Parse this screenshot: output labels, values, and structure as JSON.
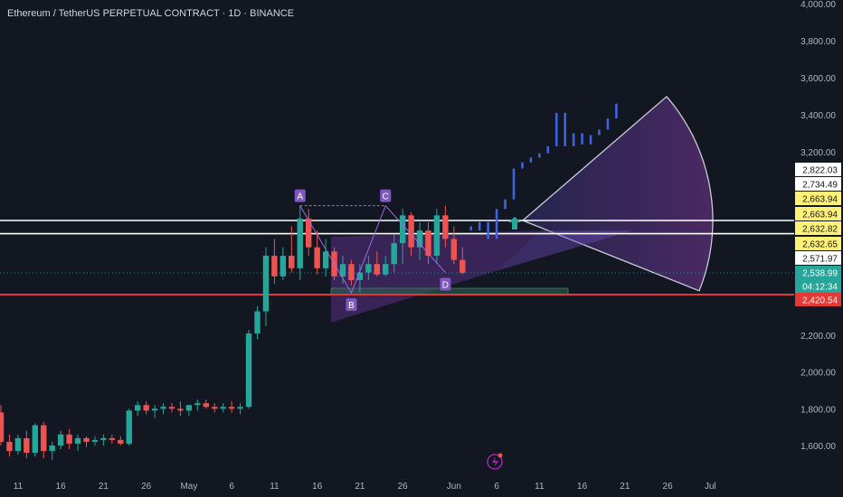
{
  "header": {
    "title": "Ethereum / TetherUS PERPETUAL CONTRACT · 1D · BINANCE"
  },
  "colors": {
    "background": "#131722",
    "up": "#26a69a",
    "down": "#ef5350",
    "projection": "#3f63e0",
    "axis_text": "#b2b5be",
    "white_line": "#ffffff",
    "red_line": "#e53935",
    "pattern_fill": "#7e3bb7",
    "label_purple": "#7e57c2",
    "arrow_green": "#26a69a"
  },
  "chart_data": {
    "type": "candlestick",
    "title": "Ethereum / TetherUS PERPETUAL CONTRACT · 1D · BINANCE",
    "ylim": [
      1450,
      4000
    ],
    "y_ticks": [
      "4,000.00",
      "3,800.00",
      "3,600.00",
      "3,400.00",
      "3,200.00",
      "2,200.00",
      "2,000.00",
      "1,800.00",
      "1,600.00"
    ],
    "x_ticks": [
      {
        "label": "11",
        "index": 2
      },
      {
        "label": "16",
        "index": 7
      },
      {
        "label": "21",
        "index": 12
      },
      {
        "label": "26",
        "index": 17
      },
      {
        "label": "May",
        "index": 22
      },
      {
        "label": "6",
        "index": 27
      },
      {
        "label": "11",
        "index": 32
      },
      {
        "label": "16",
        "index": 37
      },
      {
        "label": "21",
        "index": 42
      },
      {
        "label": "26",
        "index": 47
      },
      {
        "label": "Jun",
        "index": 53
      },
      {
        "label": "6",
        "index": 58
      },
      {
        "label": "11",
        "index": 63
      },
      {
        "label": "16",
        "index": 68
      },
      {
        "label": "21",
        "index": 73
      },
      {
        "label": "26",
        "index": 78
      },
      {
        "label": "Jul",
        "index": 83
      }
    ],
    "candles": [
      [
        1780,
        1820,
        1600,
        1620
      ],
      [
        1620,
        1660,
        1540,
        1570
      ],
      [
        1570,
        1660,
        1550,
        1640
      ],
      [
        1640,
        1680,
        1530,
        1560
      ],
      [
        1560,
        1720,
        1540,
        1710
      ],
      [
        1710,
        1730,
        1530,
        1570
      ],
      [
        1570,
        1620,
        1520,
        1600
      ],
      [
        1600,
        1680,
        1580,
        1660
      ],
      [
        1660,
        1690,
        1580,
        1610
      ],
      [
        1610,
        1660,
        1570,
        1640
      ],
      [
        1640,
        1650,
        1590,
        1620
      ],
      [
        1620,
        1650,
        1600,
        1630
      ],
      [
        1630,
        1660,
        1600,
        1640
      ],
      [
        1640,
        1660,
        1610,
        1630
      ],
      [
        1630,
        1650,
        1600,
        1610
      ],
      [
        1610,
        1800,
        1600,
        1790
      ],
      [
        1790,
        1840,
        1760,
        1820
      ],
      [
        1820,
        1840,
        1770,
        1790
      ],
      [
        1790,
        1820,
        1750,
        1800
      ],
      [
        1800,
        1830,
        1770,
        1810
      ],
      [
        1810,
        1830,
        1780,
        1800
      ],
      [
        1800,
        1840,
        1760,
        1790
      ],
      [
        1790,
        1820,
        1760,
        1820
      ],
      [
        1820,
        1850,
        1790,
        1830
      ],
      [
        1830,
        1850,
        1800,
        1810
      ],
      [
        1810,
        1830,
        1780,
        1800
      ],
      [
        1800,
        1830,
        1780,
        1810
      ],
      [
        1810,
        1840,
        1780,
        1800
      ],
      [
        1800,
        1830,
        1770,
        1810
      ],
      [
        1810,
        2230,
        1800,
        2210
      ],
      [
        2210,
        2360,
        2180,
        2330
      ],
      [
        2330,
        2600,
        2250,
        2580
      ],
      [
        2580,
        2620,
        2480,
        2520
      ],
      [
        2520,
        2600,
        2500,
        2580
      ],
      [
        2580,
        2650,
        2540,
        2550
      ],
      [
        2550,
        2710,
        2500,
        2670
      ],
      [
        2670,
        2700,
        2580,
        2600
      ],
      [
        2600,
        2640,
        2530,
        2550
      ],
      [
        2550,
        2620,
        2520,
        2590
      ],
      [
        2590,
        2600,
        2500,
        2520
      ],
      [
        2520,
        2580,
        2480,
        2560
      ],
      [
        2560,
        2570,
        2470,
        2500
      ],
      [
        2500,
        2560,
        2430,
        2540
      ],
      [
        2540,
        2580,
        2500,
        2560
      ],
      [
        2560,
        2590,
        2520,
        2530
      ],
      [
        2530,
        2580,
        2520,
        2560
      ],
      [
        2560,
        2630,
        2540,
        2610
      ],
      [
        2610,
        2700,
        2560,
        2680
      ],
      [
        2680,
        2690,
        2580,
        2600
      ],
      [
        2600,
        2660,
        2570,
        2640
      ],
      [
        2640,
        2660,
        2560,
        2580
      ],
      [
        2580,
        2700,
        2560,
        2680
      ],
      [
        2680,
        2710,
        2600,
        2620
      ],
      [
        2620,
        2650,
        2560,
        2570
      ],
      [
        2570,
        2600,
        2530,
        2539
      ]
    ],
    "projection": [
      [
        2650,
        2640
      ],
      [
        2640,
        2660
      ],
      [
        2660,
        2620
      ],
      [
        2620,
        2700
      ],
      [
        2700,
        2730
      ],
      [
        2730,
        2850
      ],
      [
        2850,
        2980
      ],
      [
        2980,
        3080
      ],
      [
        3080,
        3170
      ],
      [
        3170,
        3230
      ],
      [
        3230,
        3410
      ],
      [
        3410,
        3230
      ],
      [
        3230,
        3300
      ],
      [
        3300,
        3240
      ],
      [
        3240,
        3290
      ],
      [
        3290,
        3320
      ],
      [
        3320,
        3380
      ],
      [
        3380,
        3460
      ]
    ],
    "horizontal_lines": [
      {
        "price": 2663.94,
        "color": "white"
      },
      {
        "price": 2632.65,
        "color": "white"
      },
      {
        "price": 2420.54,
        "color": "red"
      }
    ],
    "price_labels": [
      {
        "text": "2,822.03",
        "style": "white"
      },
      {
        "text": "2,734.49",
        "style": "white"
      },
      {
        "text": "2,663.94",
        "style": "yellow"
      },
      {
        "text": "2,663.94",
        "style": "yellow"
      },
      {
        "text": "2,632.82",
        "style": "yellow"
      },
      {
        "text": "2,632.65",
        "style": "yellow"
      },
      {
        "text": "2,571.97",
        "style": "white"
      },
      {
        "text": "2,538.99",
        "style": "green"
      },
      {
        "text": "04:12:34",
        "style": "green"
      },
      {
        "text": "2,420.54",
        "style": "red"
      }
    ],
    "points": [
      {
        "label": "A",
        "index": 35,
        "price": 2710
      },
      {
        "label": "B",
        "index": 41,
        "price": 2430
      },
      {
        "label": "C",
        "index": 45,
        "price": 2710
      },
      {
        "label": "D",
        "index": 52,
        "price": 2540
      }
    ]
  }
}
